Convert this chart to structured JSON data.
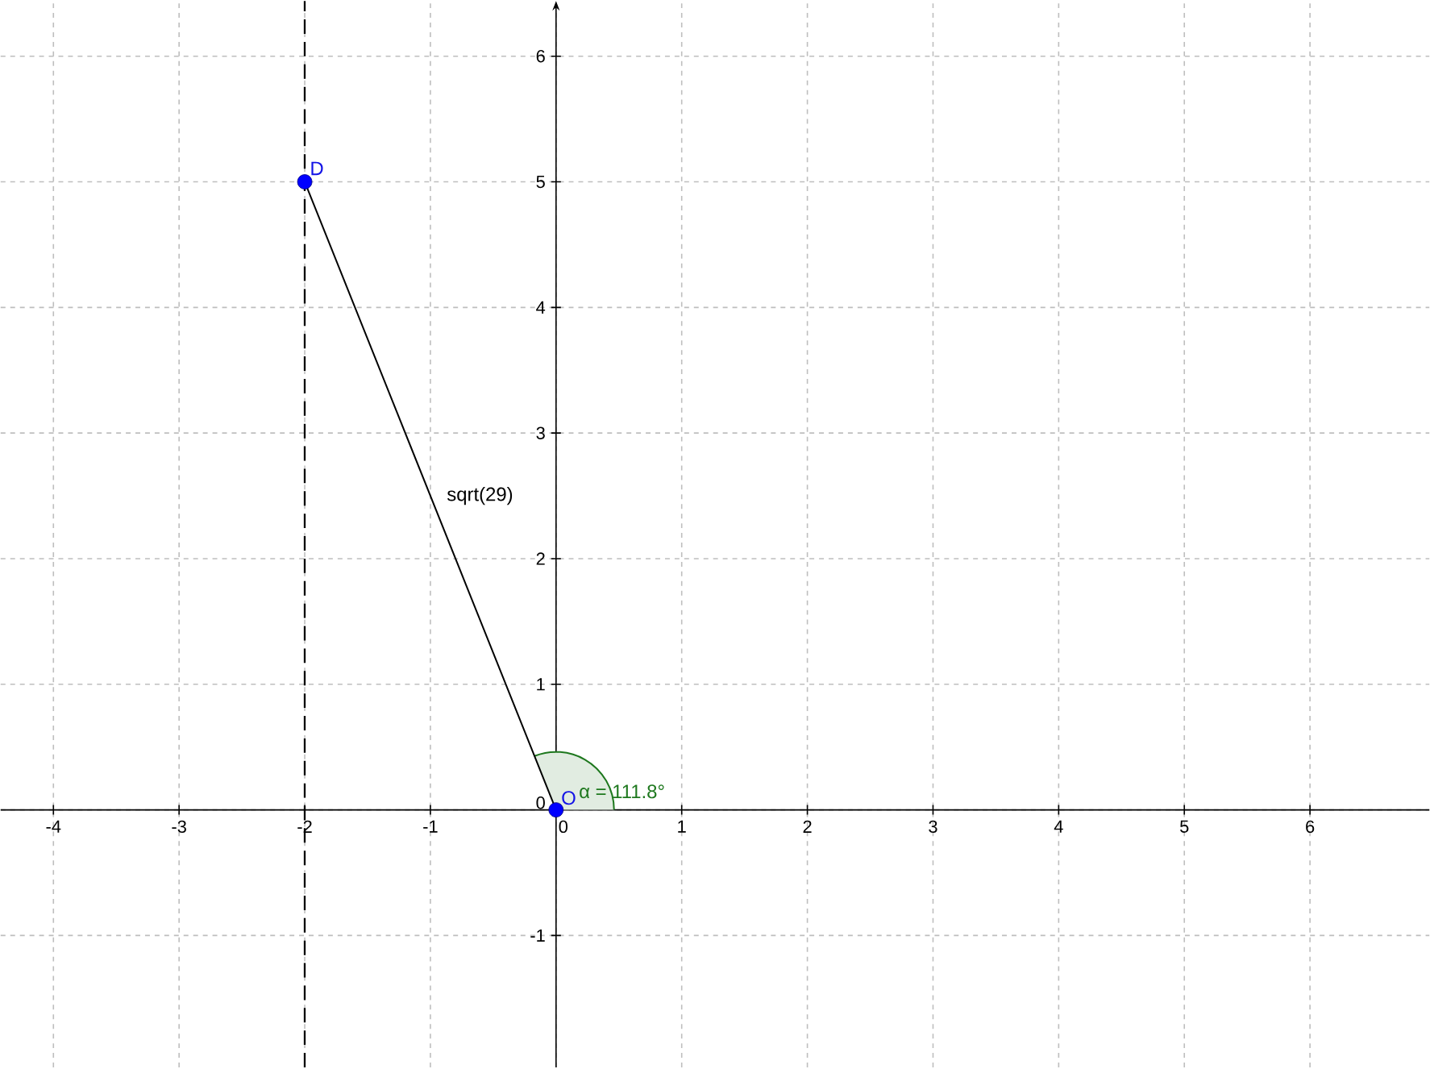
{
  "chart_data": {
    "type": "line",
    "xlim": [
      -4.42,
      6.95
    ],
    "ylim": [
      -2.05,
      6.44
    ],
    "xticks": [
      -4,
      -3,
      -2,
      -1,
      0,
      1,
      2,
      3,
      4,
      5,
      6
    ],
    "yticks": [
      -1,
      0,
      1,
      2,
      3,
      4,
      5,
      6
    ],
    "grid": true,
    "series": [
      {
        "color": "#000000",
        "colors": [
          "#0000ff",
          "#0000ff"
        ],
        "marker": "circle",
        "x": [
          -2,
          0
        ],
        "values": [
          5,
          0
        ]
      }
    ],
    "ref_lines": [
      {
        "axis": "x",
        "value": -2,
        "color": "#000000",
        "line_style": "dashed"
      }
    ],
    "annotations": [
      {
        "text": "D",
        "x": -2,
        "y": 5
      },
      {
        "text": "O",
        "x": 0,
        "y": 0
      },
      {
        "text": "sqrt(29)",
        "x": -1,
        "y": 2.5
      },
      {
        "text": "α = 111.8°",
        "x": 0,
        "y": 0
      }
    ]
  }
}
